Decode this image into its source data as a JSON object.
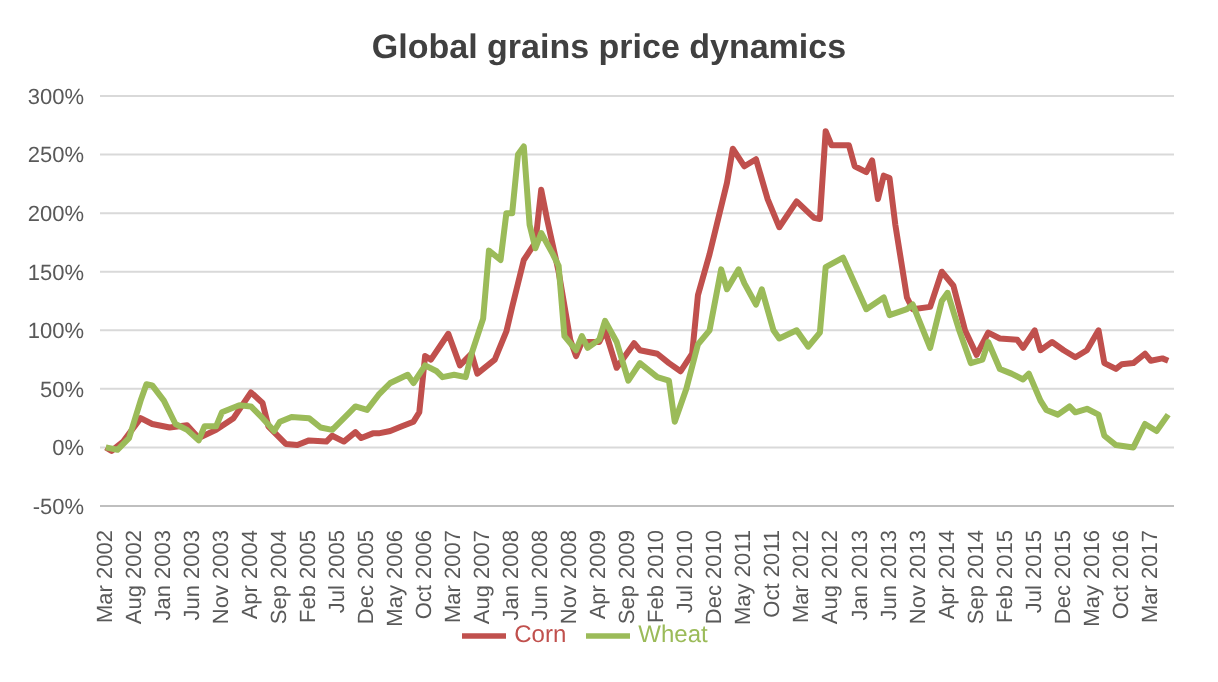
{
  "chart_data": {
    "type": "line",
    "title": "Global grains price dynamics",
    "xlim": [
      "2002-02",
      "2017-07"
    ],
    "xticks": [
      {
        "value": "2002-03",
        "label": "Mar 2002"
      },
      {
        "value": "2002-08",
        "label": "Aug 2002"
      },
      {
        "value": "2003-01",
        "label": "Jan 2003"
      },
      {
        "value": "2003-06",
        "label": "Jun 2003"
      },
      {
        "value": "2003-11",
        "label": "Nov 2003"
      },
      {
        "value": "2004-04",
        "label": "Apr 2004"
      },
      {
        "value": "2004-09",
        "label": "Sep 2004"
      },
      {
        "value": "2005-02",
        "label": "Feb 2005"
      },
      {
        "value": "2005-07",
        "label": "Jul 2005"
      },
      {
        "value": "2005-12",
        "label": "Dec 2005"
      },
      {
        "value": "2006-05",
        "label": "May 2006"
      },
      {
        "value": "2006-10",
        "label": "Oct 2006"
      },
      {
        "value": "2007-03",
        "label": "Mar 2007"
      },
      {
        "value": "2007-08",
        "label": "Aug 2007"
      },
      {
        "value": "2008-01",
        "label": "Jan 2008"
      },
      {
        "value": "2008-06",
        "label": "Jun 2008"
      },
      {
        "value": "2008-11",
        "label": "Nov 2008"
      },
      {
        "value": "2009-04",
        "label": "Apr 2009"
      },
      {
        "value": "2009-09",
        "label": "Sep 2009"
      },
      {
        "value": "2010-02",
        "label": "Feb 2010"
      },
      {
        "value": "2010-07",
        "label": "Jul 2010"
      },
      {
        "value": "2010-12",
        "label": "Dec 2010"
      },
      {
        "value": "2011-05",
        "label": "May 2011"
      },
      {
        "value": "2011-10",
        "label": "Oct 2011"
      },
      {
        "value": "2012-03",
        "label": "Mar 2012"
      },
      {
        "value": "2012-08",
        "label": "Aug 2012"
      },
      {
        "value": "2013-01",
        "label": "Jan 2013"
      },
      {
        "value": "2013-06",
        "label": "Jun 2013"
      },
      {
        "value": "2013-11",
        "label": "Nov 2013"
      },
      {
        "value": "2014-04",
        "label": "Apr 2014"
      },
      {
        "value": "2014-09",
        "label": "Sep 2014"
      },
      {
        "value": "2015-02",
        "label": "Feb 2015"
      },
      {
        "value": "2015-07",
        "label": "Jul 2015"
      },
      {
        "value": "2015-12",
        "label": "Dec 2015"
      },
      {
        "value": "2016-05",
        "label": "May 2016"
      },
      {
        "value": "2016-10",
        "label": "Oct 2016"
      },
      {
        "value": "2017-03",
        "label": "Mar 2017"
      }
    ],
    "ylim": [
      -50,
      300
    ],
    "yticks": [
      {
        "value": -50,
        "label": "-50%"
      },
      {
        "value": 0,
        "label": "0%"
      },
      {
        "value": 50,
        "label": "50%"
      },
      {
        "value": 100,
        "label": "100%"
      },
      {
        "value": 150,
        "label": "150%"
      },
      {
        "value": 200,
        "label": "200%"
      },
      {
        "value": 250,
        "label": "250%"
      },
      {
        "value": 300,
        "label": "300%"
      }
    ],
    "grid": "y",
    "legend": "bottom",
    "series": [
      {
        "name": "Corn",
        "color": "#c0504d",
        "x": [
          "2002-03",
          "2002-04",
          "2002-06",
          "2002-09",
          "2002-11",
          "2003-02",
          "2003-05",
          "2003-07",
          "2003-10",
          "2004-01",
          "2004-04",
          "2004-06",
          "2004-07",
          "2004-10",
          "2004-12",
          "2005-02",
          "2005-05",
          "2005-06",
          "2005-08",
          "2005-10",
          "2005-11",
          "2006-01",
          "2006-02",
          "2006-04",
          "2006-06",
          "2006-08",
          "2006-09",
          "2006-10",
          "2006-11",
          "2007-02",
          "2007-04",
          "2007-06",
          "2007-07",
          "2007-10",
          "2007-12",
          "2008-01",
          "2008-03",
          "2008-05",
          "2008-06",
          "2008-07",
          "2008-09",
          "2008-11",
          "2008-12",
          "2009-01",
          "2009-04",
          "2009-05",
          "2009-07",
          "2009-10",
          "2009-11",
          "2010-02",
          "2010-04",
          "2010-06",
          "2010-08",
          "2010-09",
          "2010-11",
          "2011-02",
          "2011-03",
          "2011-05",
          "2011-07",
          "2011-09",
          "2011-11",
          "2012-02",
          "2012-05",
          "2012-06",
          "2012-07",
          "2012-08",
          "2012-11",
          "2012-12",
          "2013-02",
          "2013-03",
          "2013-04",
          "2013-05",
          "2013-06",
          "2013-07",
          "2013-09",
          "2013-10",
          "2014-01",
          "2014-03",
          "2014-05",
          "2014-07",
          "2014-09",
          "2014-11",
          "2015-01",
          "2015-04",
          "2015-05",
          "2015-07",
          "2015-08",
          "2015-10",
          "2015-12",
          "2016-02",
          "2016-04",
          "2016-06",
          "2016-07",
          "2016-09",
          "2016-10",
          "2016-12",
          "2017-02",
          "2017-03",
          "2017-05",
          "2017-06"
        ],
        "values": [
          0,
          -3,
          5,
          25,
          20,
          17,
          19,
          8,
          15,
          25,
          47,
          38,
          18,
          3,
          2,
          6,
          5,
          10,
          5,
          13,
          8,
          12,
          12,
          14,
          18,
          22,
          30,
          78,
          75,
          97,
          70,
          80,
          63,
          75,
          99,
          120,
          160,
          175,
          220,
          195,
          150,
          92,
          78,
          90,
          90,
          100,
          68,
          89,
          83,
          80,
          72,
          65,
          80,
          130,
          165,
          226,
          255,
          240,
          246,
          212,
          188,
          210,
          196,
          195,
          270,
          258,
          258,
          240,
          235,
          245,
          212,
          232,
          230,
          190,
          128,
          118,
          120,
          150,
          138,
          100,
          79,
          98,
          93,
          92,
          85,
          100,
          83,
          90,
          83,
          77,
          83,
          100,
          72,
          67,
          71,
          72,
          80,
          74,
          76,
          74
        ]
      },
      {
        "name": "Wheat",
        "color": "#9bbb59",
        "x": [
          "2002-03",
          "2002-05",
          "2002-07",
          "2002-09",
          "2002-10",
          "2002-11",
          "2003-01",
          "2003-02",
          "2003-03",
          "2003-05",
          "2003-07",
          "2003-08",
          "2003-10",
          "2003-11",
          "2004-02",
          "2004-04",
          "2004-06",
          "2004-08",
          "2004-09",
          "2004-11",
          "2005-02",
          "2005-04",
          "2005-06",
          "2005-09",
          "2005-10",
          "2005-12",
          "2006-02",
          "2006-04",
          "2006-07",
          "2006-08",
          "2006-10",
          "2006-12",
          "2007-01",
          "2007-03",
          "2007-05",
          "2007-06",
          "2007-08",
          "2007-09",
          "2007-11",
          "2007-12",
          "2008-01",
          "2008-02",
          "2008-03",
          "2008-04",
          "2008-05",
          "2008-06",
          "2008-08",
          "2008-09",
          "2008-10",
          "2008-12",
          "2009-01",
          "2009-02",
          "2009-04",
          "2009-05",
          "2009-07",
          "2009-09",
          "2009-11",
          "2010-02",
          "2010-04",
          "2010-05",
          "2010-07",
          "2010-09",
          "2010-11",
          "2011-01",
          "2011-02",
          "2011-04",
          "2011-05",
          "2011-07",
          "2011-08",
          "2011-10",
          "2011-11",
          "2012-02",
          "2012-04",
          "2012-06",
          "2012-07",
          "2012-10",
          "2012-12",
          "2013-02",
          "2013-05",
          "2013-06",
          "2013-09",
          "2013-10",
          "2014-01",
          "2014-03",
          "2014-04",
          "2014-06",
          "2014-08",
          "2014-10",
          "2014-11",
          "2015-01",
          "2015-03",
          "2015-05",
          "2015-06",
          "2015-08",
          "2015-09",
          "2015-11",
          "2016-01",
          "2016-02",
          "2016-04",
          "2016-06",
          "2016-07",
          "2016-09",
          "2016-12",
          "2017-02",
          "2017-04",
          "2017-06"
        ],
        "values": [
          0,
          -2,
          8,
          40,
          54,
          53,
          40,
          30,
          20,
          15,
          6,
          18,
          18,
          30,
          36,
          35,
          25,
          14,
          22,
          26,
          25,
          17,
          15,
          30,
          35,
          32,
          45,
          55,
          62,
          55,
          70,
          65,
          60,
          62,
          60,
          80,
          110,
          168,
          160,
          200,
          200,
          250,
          257,
          190,
          170,
          183,
          165,
          155,
          95,
          83,
          95,
          85,
          92,
          108,
          90,
          57,
          72,
          60,
          57,
          22,
          50,
          88,
          100,
          152,
          135,
          152,
          140,
          122,
          135,
          100,
          93,
          100,
          86,
          98,
          154,
          162,
          140,
          118,
          128,
          113,
          118,
          122,
          85,
          125,
          132,
          100,
          72,
          75,
          90,
          67,
          63,
          58,
          63,
          40,
          32,
          28,
          35,
          30,
          33,
          28,
          10,
          2,
          0,
          20,
          14,
          28
        ]
      }
    ]
  }
}
